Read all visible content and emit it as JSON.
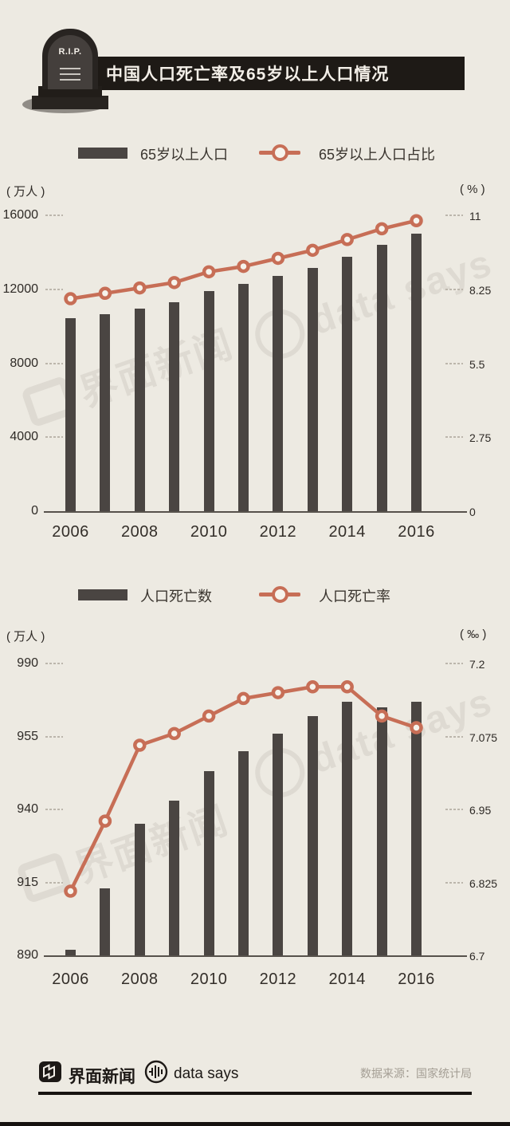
{
  "header": {
    "rip": "R.I.P.",
    "title": "中国人口死亡率及65岁以上人口情况"
  },
  "charts": [
    {
      "legend_bar": "65岁以上人口",
      "legend_line": "65岁以上人口占比",
      "left_unit": "( 万人 )",
      "right_unit": "( % )"
    },
    {
      "legend_bar": "人口死亡数",
      "legend_line": "人口死亡率",
      "left_unit": "( 万人 )",
      "right_unit": "( ‰ )"
    }
  ],
  "watermarks": {
    "jiemian": "界面新闻",
    "datasays": "data says"
  },
  "footer": {
    "brand": "界面新闻",
    "datasays": "data says",
    "source": "数据来源：国家统计局"
  },
  "colors": {
    "background": "#edeae2",
    "bar": "#4a4542",
    "line": "#c76e56",
    "marker_fill": "#f6f3ec",
    "title_bar": "#1e1a16"
  },
  "chart_data": [
    {
      "type": "bar",
      "title": "65岁以上人口及占比",
      "categories": [
        "2006",
        "2007",
        "2008",
        "2009",
        "2010",
        "2011",
        "2012",
        "2013",
        "2014",
        "2015",
        "2016"
      ],
      "x_tick_labels": [
        "2006",
        "2008",
        "2010",
        "2012",
        "2014",
        "2016"
      ],
      "series": [
        {
          "name": "65岁以上人口",
          "type": "bar",
          "axis": "left",
          "values": [
            10419,
            10636,
            10956,
            11307,
            11894,
            12288,
            12714,
            13161,
            13755,
            14386,
            15003
          ]
        },
        {
          "name": "65岁以上人口占比",
          "type": "line",
          "axis": "right",
          "values": [
            7.9,
            8.1,
            8.3,
            8.5,
            8.9,
            9.1,
            9.4,
            9.7,
            10.1,
            10.5,
            10.8
          ]
        }
      ],
      "left_axis": {
        "unit": "万人",
        "min": 0,
        "max": 16000,
        "ticks": [
          "16000",
          "12000",
          "8000",
          "4000",
          "0"
        ]
      },
      "right_axis": {
        "unit": "%",
        "min": 0,
        "max": 11,
        "ticks": [
          "11",
          "8.25",
          "5.5",
          "2.75",
          "0"
        ]
      },
      "grid": "dashed-ticks",
      "legend_position": "top"
    },
    {
      "type": "bar",
      "title": "人口死亡数及死亡率",
      "categories": [
        "2006",
        "2007",
        "2008",
        "2009",
        "2010",
        "2011",
        "2012",
        "2013",
        "2014",
        "2015",
        "2016"
      ],
      "x_tick_labels": [
        "2006",
        "2008",
        "2010",
        "2012",
        "2014",
        "2016"
      ],
      "series": [
        {
          "name": "人口死亡数",
          "type": "bar",
          "axis": "left",
          "values": [
            892,
            913,
            935,
            943,
            953,
            960,
            966,
            972,
            977,
            975,
            977
          ]
        },
        {
          "name": "人口死亡率",
          "type": "line",
          "axis": "right",
          "values": [
            6.81,
            6.93,
            7.06,
            7.08,
            7.11,
            7.14,
            7.15,
            7.16,
            7.16,
            7.11,
            7.09
          ]
        }
      ],
      "left_axis": {
        "unit": "万人",
        "min": 890,
        "max": 990,
        "ticks": [
          "990",
          "955",
          "940",
          "915",
          "890"
        ]
      },
      "right_axis": {
        "unit": "‰",
        "min": 6.7,
        "max": 7.2,
        "ticks": [
          "7.2",
          "7.075",
          "6.95",
          "6.825",
          "6.7"
        ]
      },
      "grid": "dashed-ticks",
      "legend_position": "top"
    }
  ]
}
